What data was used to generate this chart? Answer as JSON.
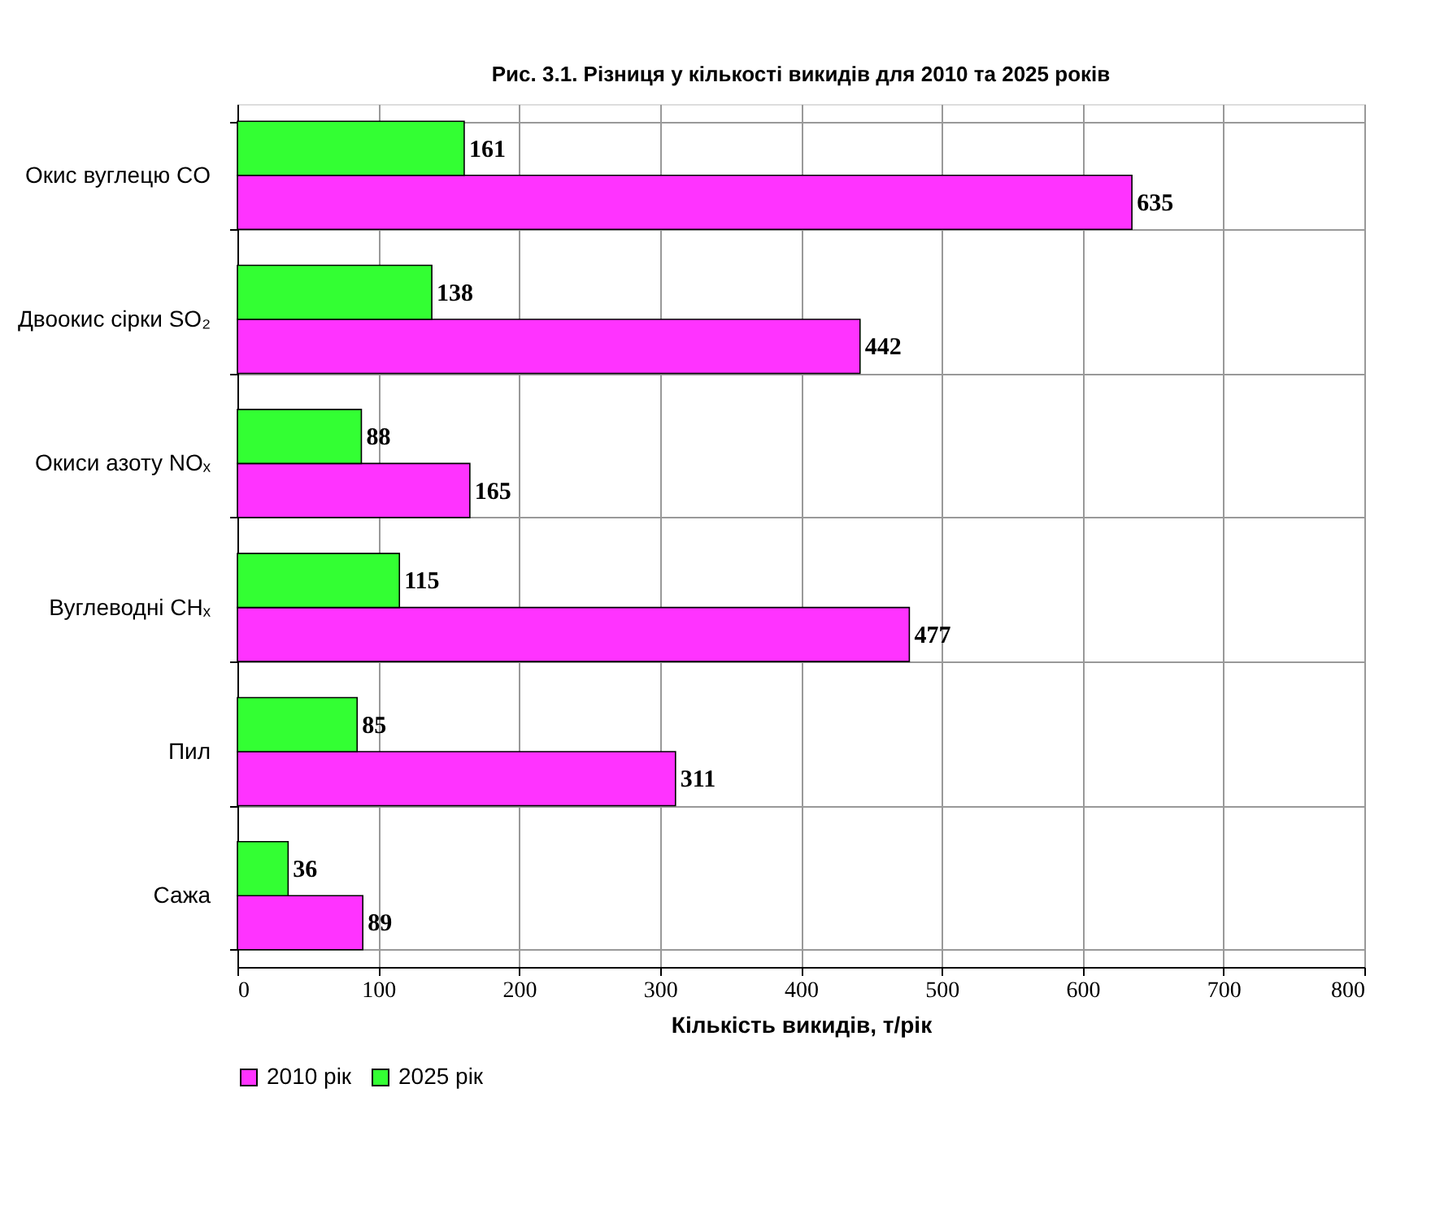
{
  "chart_data": {
    "type": "bar",
    "orientation": "horizontal",
    "title": "Рис. 3.1. Різниця у кількості викидів для 2010 та 2025 років",
    "xlabel": "Кількість викидів, т/рік",
    "categories": [
      "Окис вуглецю CO",
      "Двоокис сірки SO₂",
      "Окиси азоту NOₓ",
      "Вуглеводні CHₓ",
      "Пил",
      "Сажа"
    ],
    "series": [
      {
        "name": "2010 рік",
        "color": "#ff33ff",
        "values": [
          635,
          442,
          165,
          477,
          311,
          89
        ]
      },
      {
        "name": "2025 рік",
        "color": "#33ff33",
        "values": [
          161,
          138,
          88,
          115,
          85,
          36
        ]
      }
    ],
    "xlim": [
      0,
      800
    ],
    "xticks": [
      0,
      100,
      200,
      300,
      400,
      500,
      600,
      700,
      800
    ],
    "grid": true,
    "legend": "bottom",
    "data_labels": true
  }
}
